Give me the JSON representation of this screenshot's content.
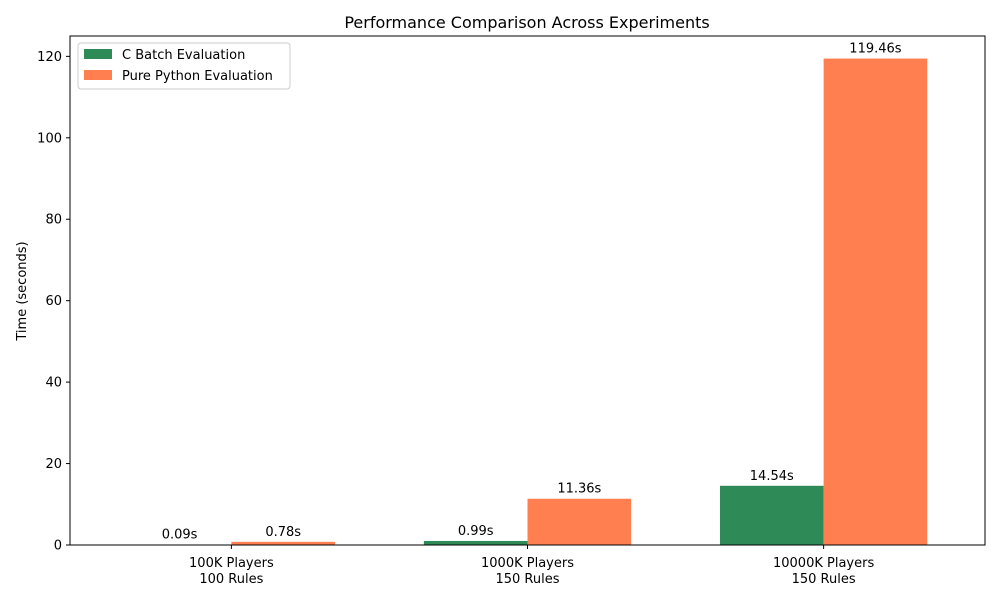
{
  "chart_data": {
    "type": "bar",
    "title": "Performance Comparison Across Experiments",
    "xlabel": "",
    "ylabel": "Time (seconds)",
    "ylim": [
      0,
      125
    ],
    "yticks": [
      0,
      20,
      40,
      60,
      80,
      100,
      120
    ],
    "categories": [
      [
        "100K Players",
        "100 Rules"
      ],
      [
        "1000K Players",
        "150 Rules"
      ],
      [
        "10000K Players",
        "150 Rules"
      ]
    ],
    "series": [
      {
        "name": "C Batch Evaluation",
        "color": "#2e8b57",
        "values": [
          0.09,
          0.99,
          14.54
        ],
        "labels": [
          "0.09s",
          "0.99s",
          "14.54s"
        ]
      },
      {
        "name": "Pure Python Evaluation",
        "color": "#ff7f50",
        "values": [
          0.78,
          11.36,
          119.46
        ],
        "labels": [
          "0.78s",
          "11.36s",
          "119.46s"
        ]
      }
    ],
    "legend": "top-left",
    "grid": false
  }
}
